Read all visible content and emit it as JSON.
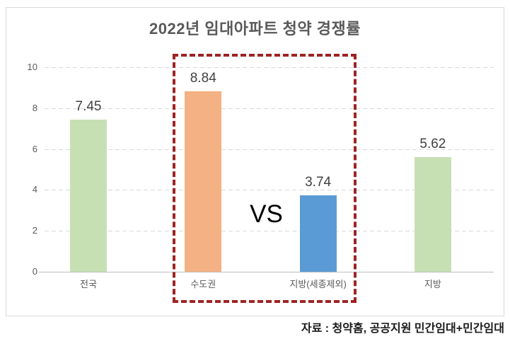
{
  "title": "2022년 임대아파트 청약 경쟁률",
  "source_note": "자료 : 청약홈, 공공지원 민간임대+민간임대",
  "colors": {
    "green_bar": "#c6e0b4",
    "orange_bar": "#f4b183",
    "blue_bar": "#5b9bd5",
    "highlight_box_border": "#9e2323",
    "gridline": "#d9d9d9",
    "axis_line": "#bfbfbf",
    "title_text": "#595959",
    "value_text": "#404040",
    "tick_text": "#595959",
    "frame_border": "#d9d9d9"
  },
  "chart_data": {
    "type": "bar",
    "title": "2022년 임대아파트 청약 경쟁률",
    "categories": [
      "전국",
      "수도권",
      "지방(세종제외)",
      "지방"
    ],
    "values": [
      7.45,
      8.84,
      3.74,
      5.62
    ],
    "value_labels": [
      "7.45",
      "8.84",
      "3.74",
      "5.62"
    ],
    "bar_colors": [
      "#c6e0b4",
      "#f4b183",
      "#5b9bd5",
      "#c6e0b4"
    ],
    "xlabel": "",
    "ylabel": "",
    "ylim": [
      0,
      10
    ],
    "yticks": [
      0,
      2,
      4,
      6,
      8,
      10
    ],
    "grid": true,
    "gridline_style": "dashed",
    "legend": false,
    "highlight": {
      "label": "VS",
      "categories": [
        "수도권",
        "지방(세종제외)"
      ],
      "style": "dark-red dashed box"
    }
  }
}
